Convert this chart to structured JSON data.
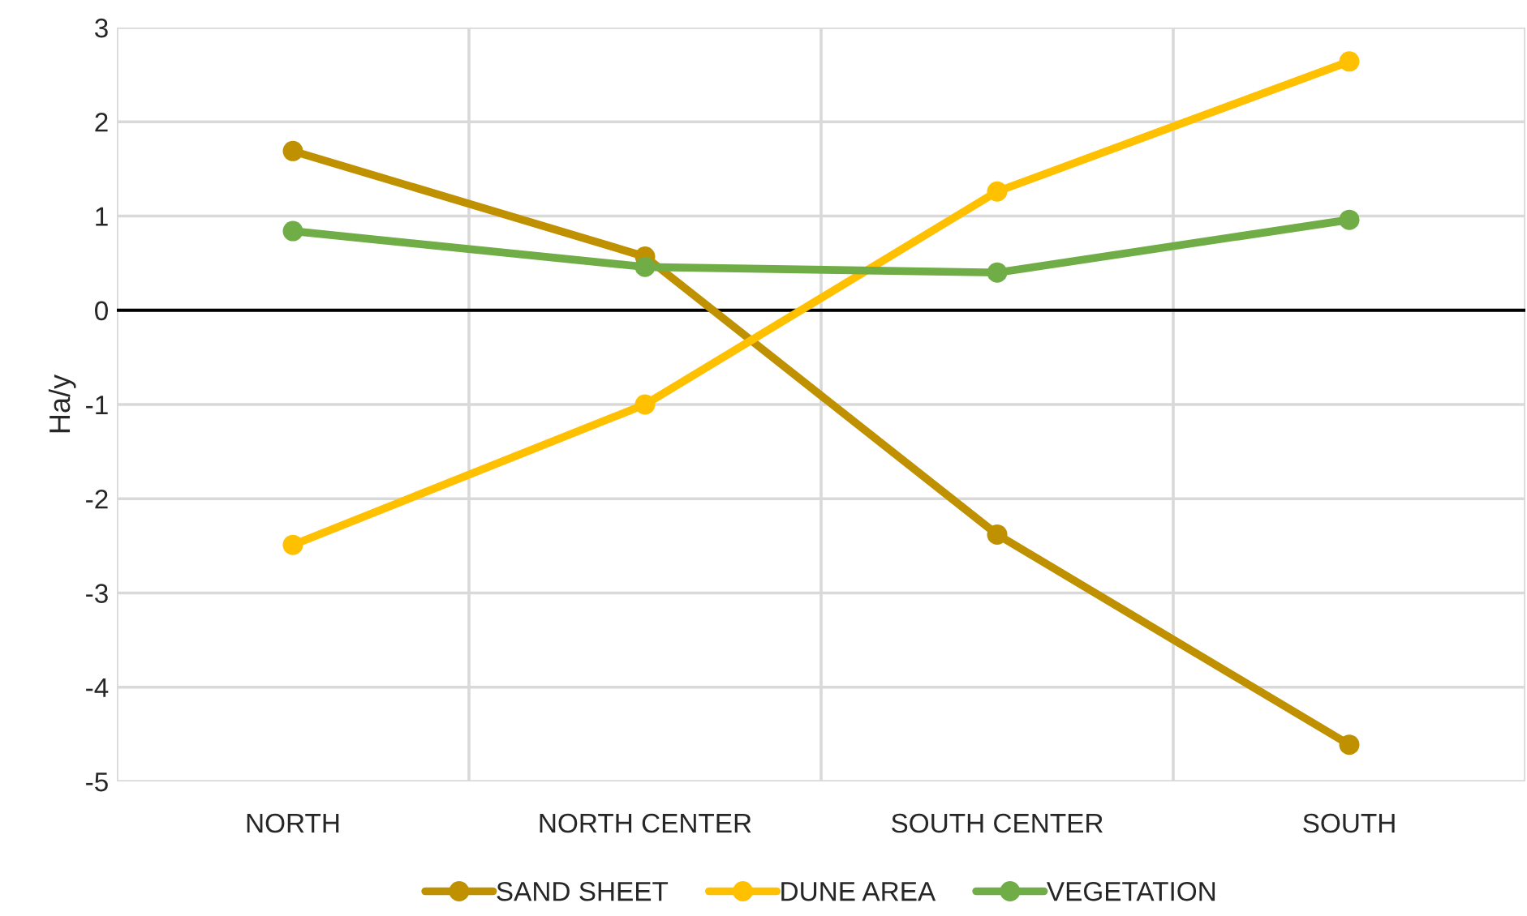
{
  "chart_data": {
    "type": "line",
    "ylabel": "Ha/y",
    "categories": [
      "NORTH",
      "NORTH CENTER",
      "SOUTH CENTER",
      "SOUTH"
    ],
    "series": [
      {
        "name": "SAND SHEET",
        "color": "#bf9000",
        "values": [
          1.69,
          0.57,
          -2.38,
          -4.61
        ]
      },
      {
        "name": "DUNE AREA",
        "color": "#ffc000",
        "values": [
          -2.49,
          -1.0,
          1.26,
          2.64
        ]
      },
      {
        "name": "VEGETATION",
        "color": "#70ad47",
        "values": [
          0.84,
          0.46,
          0.4,
          0.96
        ]
      }
    ],
    "ylim": [
      -5,
      3
    ],
    "yticks": [
      -5,
      -4,
      -3,
      -2,
      -1,
      0,
      1,
      2,
      3
    ],
    "ref_lines": [
      {
        "axis": "y",
        "value": 0,
        "color": "#000000"
      }
    ],
    "grid": true,
    "legend": "bottom",
    "marker": "circle",
    "line_style": "solid"
  }
}
